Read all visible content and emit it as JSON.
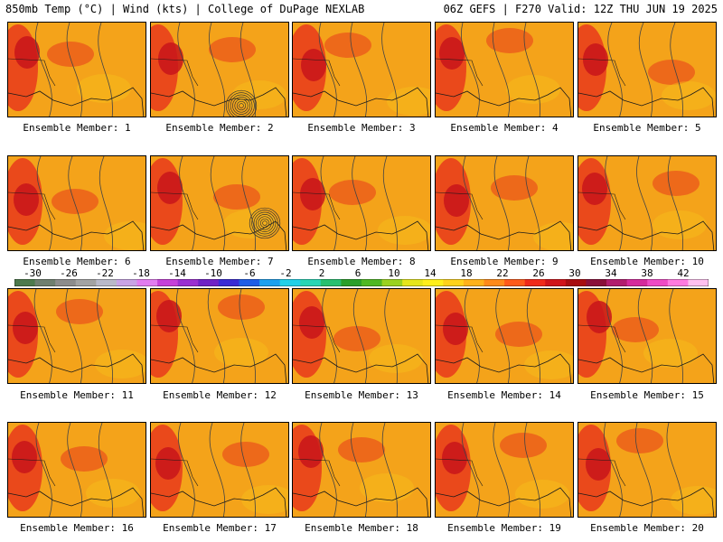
{
  "header": {
    "left": "850mb Temp (°C) | Wind (kts) | College of DuPage NEXLAB",
    "right": "06Z GEFS | F270 Valid: 12Z THU JUN 19 2025"
  },
  "panels": [
    "Ensemble Member: 1",
    "Ensemble Member: 2",
    "Ensemble Member: 3",
    "Ensemble Member: 4",
    "Ensemble Member: 5",
    "Ensemble Member: 6",
    "Ensemble Member: 7",
    "Ensemble Member: 8",
    "Ensemble Member: 9",
    "Ensemble Member: 10",
    "Ensemble Member: 11",
    "Ensemble Member: 12",
    "Ensemble Member: 13",
    "Ensemble Member: 14",
    "Ensemble Member: 15",
    "Ensemble Member: 16",
    "Ensemble Member: 17",
    "Ensemble Member: 18",
    "Ensemble Member: 19",
    "Ensemble Member: 20"
  ],
  "colorbar": {
    "ticks": [
      "-30",
      "-26",
      "-22",
      "-18",
      "-14",
      "-10",
      "-6",
      "-2",
      "2",
      "6",
      "10",
      "14",
      "18",
      "22",
      "26",
      "30",
      "34",
      "38",
      "42"
    ],
    "colors": [
      "#4d7a4d",
      "#6f7f6f",
      "#8c8c8c",
      "#a3a3a3",
      "#b9b9c9",
      "#c9a3e6",
      "#e27cf0",
      "#c540d9",
      "#9a2fd0",
      "#6f22c6",
      "#3a2bd6",
      "#1f5de6",
      "#1da0ee",
      "#22d0e8",
      "#27d6b4",
      "#27c070",
      "#2aa02a",
      "#4fb824",
      "#9ad21f",
      "#e6e61a",
      "#ffef1a",
      "#ffd21a",
      "#ffb21a",
      "#ff8a1a",
      "#ff5a1a",
      "#f02a1a",
      "#d0141a",
      "#a80d10",
      "#8a0f3a",
      "#b21d6e",
      "#d52a9c",
      "#ee4ac4",
      "#ff7ae0",
      "#ffc0f0"
    ]
  },
  "colors": {
    "warm": "#f4a31a",
    "hot": "#e83a1c",
    "veryhot": "#c8141a",
    "mild": "#f7c21a",
    "coast": "#1a1a1a"
  }
}
